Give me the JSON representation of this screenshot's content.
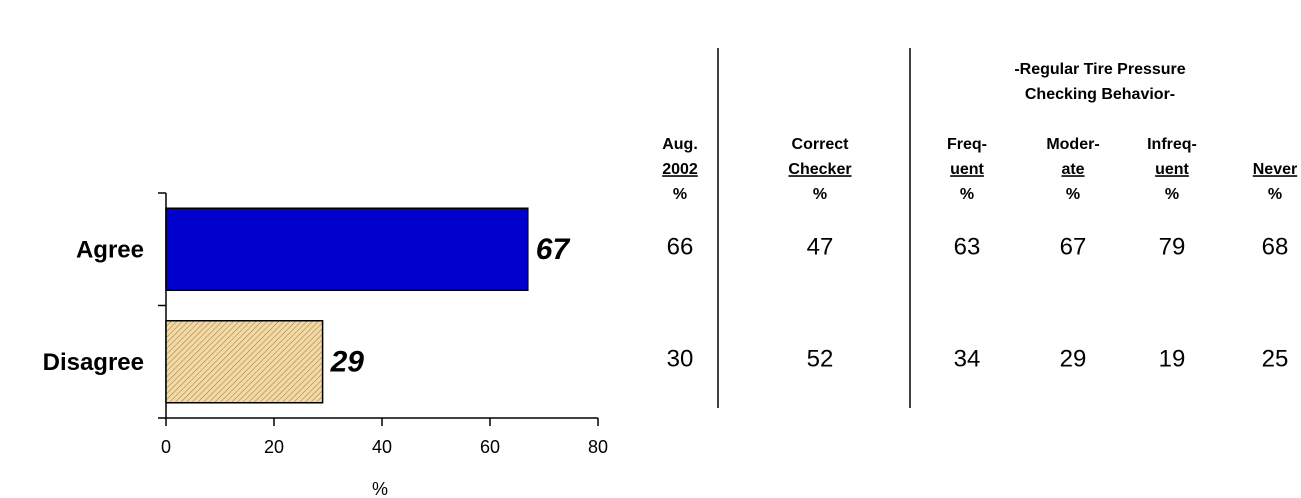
{
  "chart_data": {
    "type": "barh",
    "categories": [
      "Agree",
      "Disagree"
    ],
    "values": [
      67,
      29
    ],
    "colors": [
      "#0000cc",
      "#f5d9a0"
    ],
    "xlim": [
      0,
      80
    ],
    "xticks": [
      0,
      20,
      40,
      60,
      80
    ],
    "xlabel": "%"
  },
  "table": {
    "group_header": [
      "-Regular Tire Pressure",
      "Checking Behavior-"
    ],
    "columns": [
      [
        "Aug.",
        "2002",
        "%"
      ],
      [
        "Correct",
        "Checker",
        "%"
      ],
      [
        "Freq-",
        "uent",
        "%"
      ],
      [
        "Moder-",
        "ate",
        "%"
      ],
      [
        "Infreq-",
        "uent",
        "%"
      ],
      [
        "Never",
        "%"
      ]
    ],
    "rows": [
      [
        66,
        47,
        63,
        67,
        79,
        68
      ],
      [
        30,
        52,
        34,
        29,
        19,
        25
      ]
    ]
  }
}
